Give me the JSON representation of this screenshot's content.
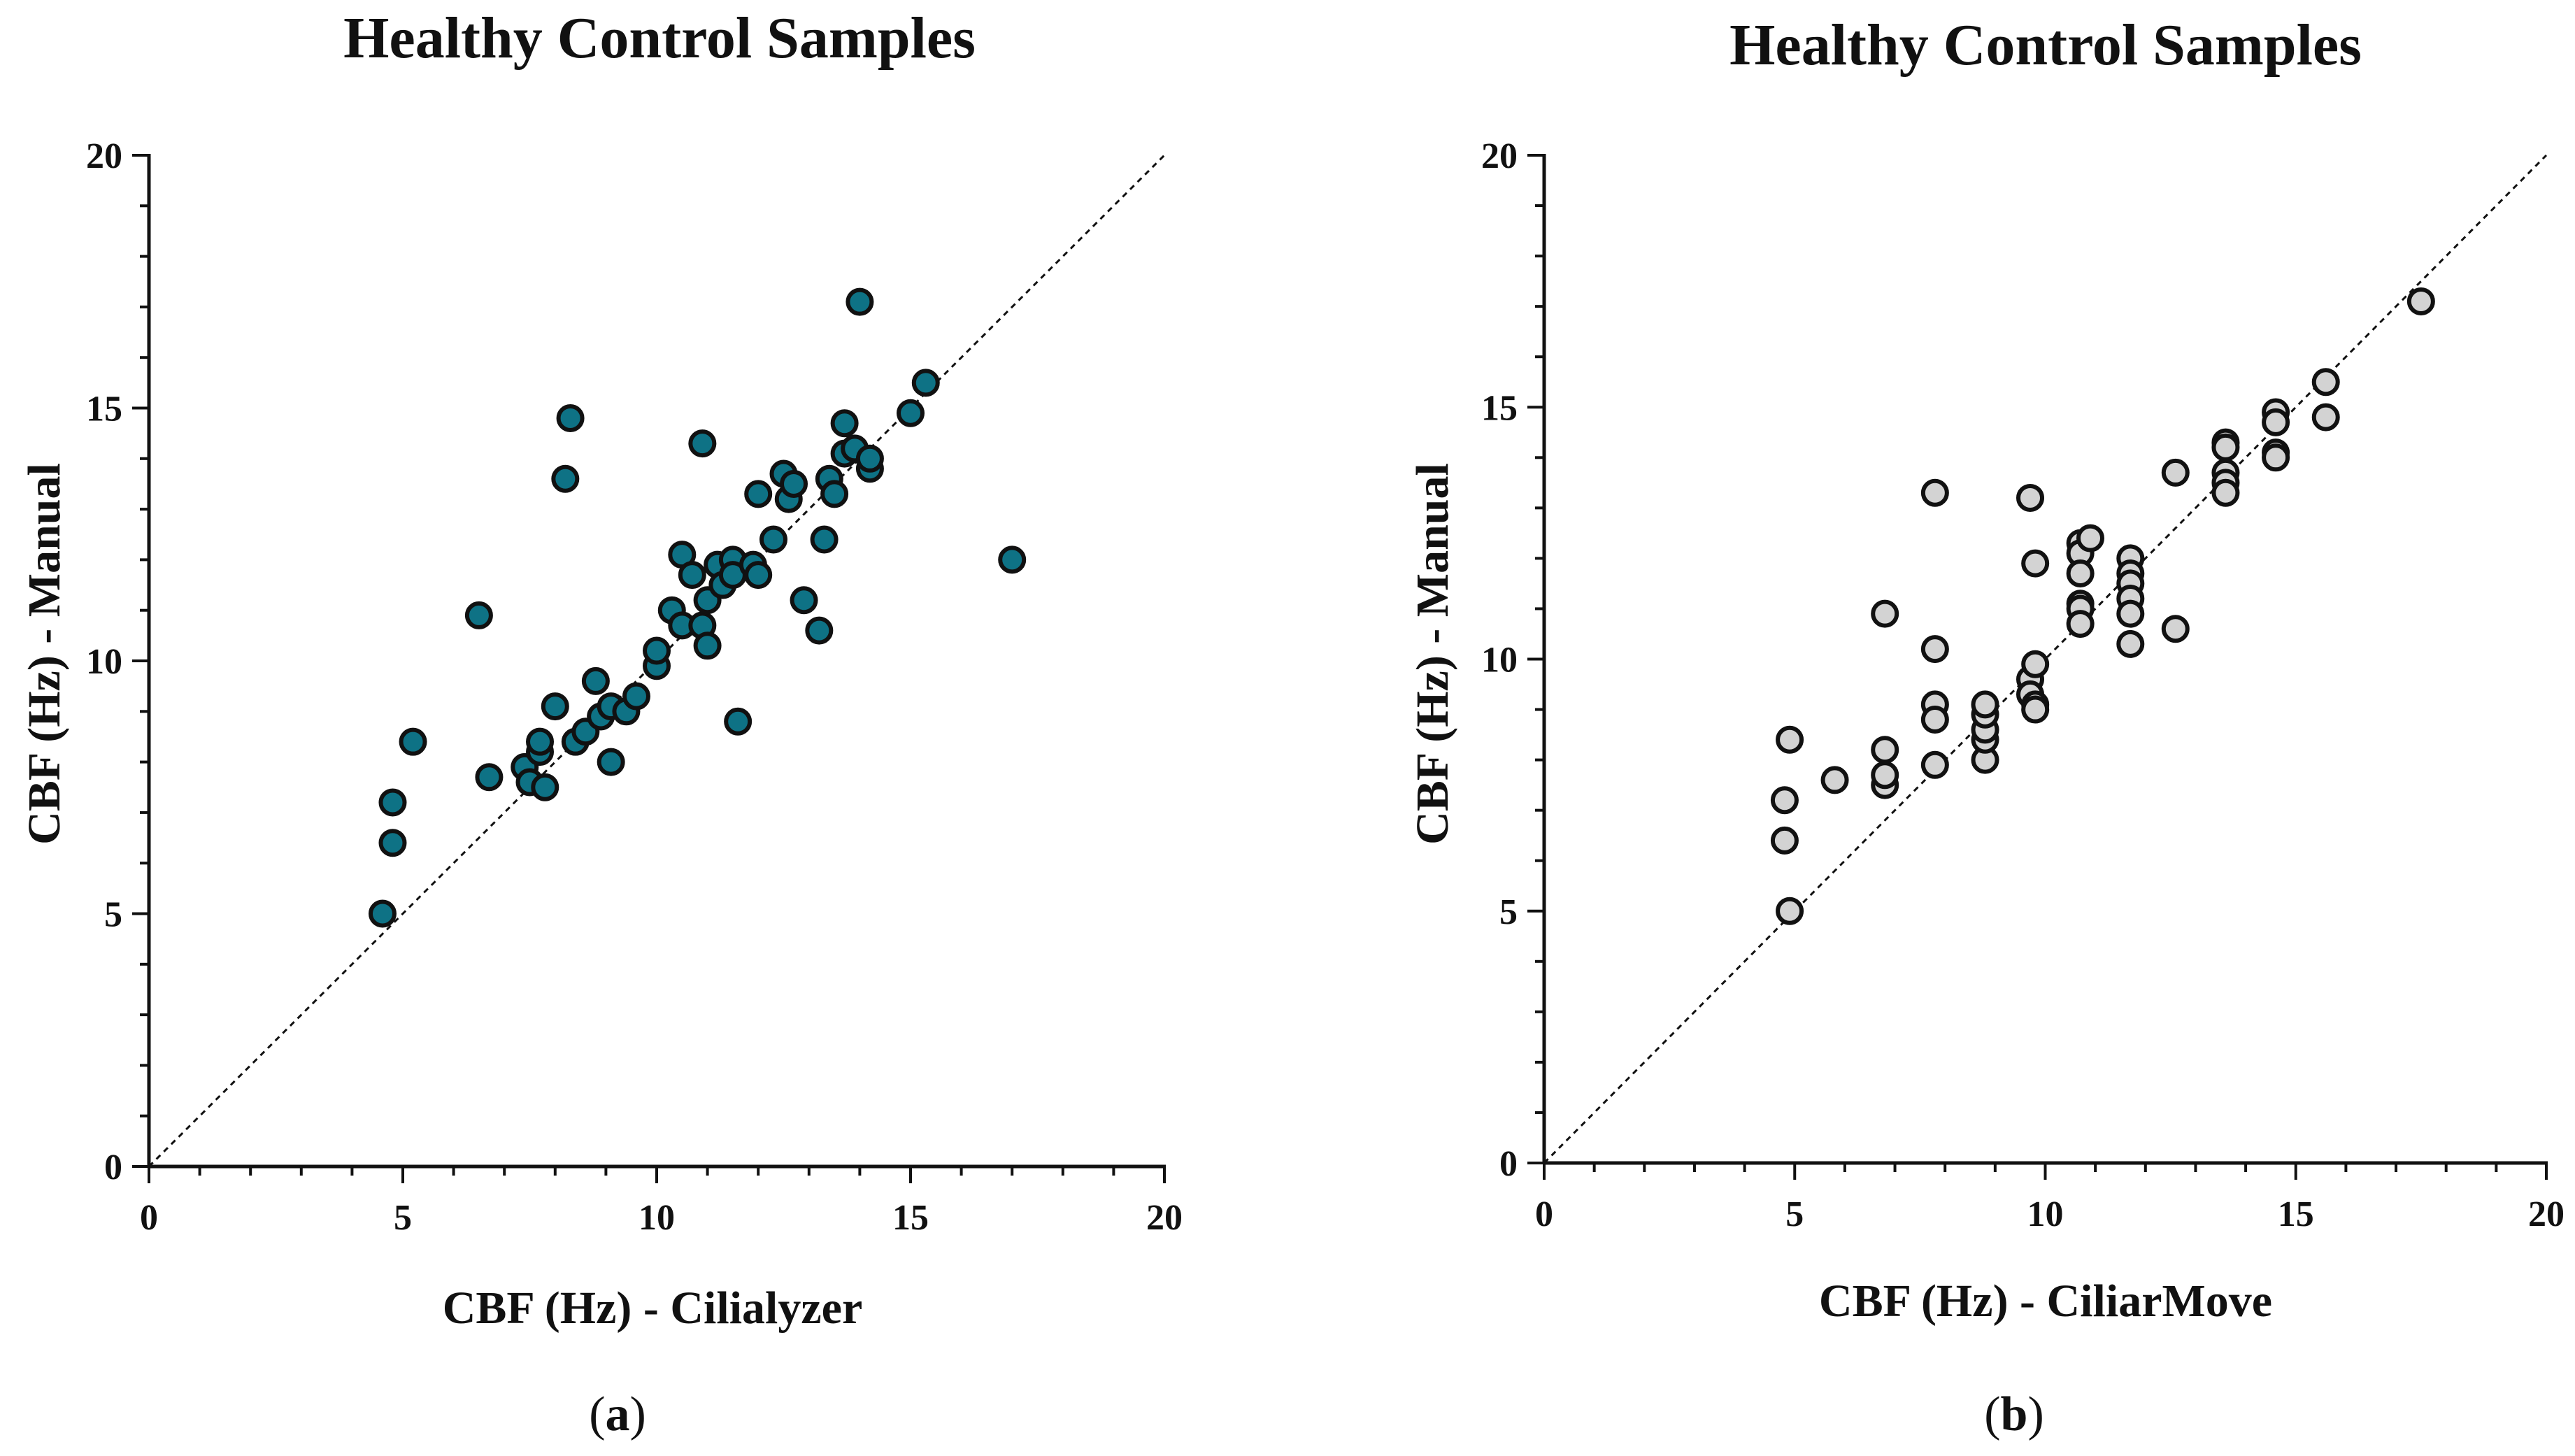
{
  "chart_data": [
    {
      "type": "scatter",
      "panel_label": "a",
      "title": "Healthy Control Samples",
      "xlabel": "CBF (Hz) - Cilialyzer",
      "ylabel": "CBF (Hz) - Manual",
      "xlim": [
        0,
        20
      ],
      "ylim": [
        0,
        20
      ],
      "xticks": [
        "0",
        "5",
        "10",
        "15",
        "20"
      ],
      "yticks": [
        "0",
        "5",
        "10",
        "15",
        "20"
      ],
      "identity_line": true,
      "marker_color": "#0e7285",
      "points": [
        [
          4.6,
          5.0
        ],
        [
          4.8,
          6.4
        ],
        [
          4.8,
          7.2
        ],
        [
          5.2,
          8.4
        ],
        [
          6.5,
          10.9
        ],
        [
          6.7,
          7.7
        ],
        [
          7.4,
          7.9
        ],
        [
          7.5,
          7.6
        ],
        [
          7.7,
          8.2
        ],
        [
          7.7,
          8.4
        ],
        [
          7.8,
          7.5
        ],
        [
          8.0,
          9.1
        ],
        [
          8.2,
          13.6
        ],
        [
          8.3,
          14.8
        ],
        [
          8.4,
          8.4
        ],
        [
          8.6,
          8.6
        ],
        [
          8.8,
          9.6
        ],
        [
          8.9,
          8.9
        ],
        [
          9.1,
          9.1
        ],
        [
          9.1,
          8.0
        ],
        [
          9.4,
          9.0
        ],
        [
          9.6,
          9.3
        ],
        [
          10.0,
          9.9
        ],
        [
          10.0,
          10.2
        ],
        [
          10.3,
          11.0
        ],
        [
          10.5,
          12.1
        ],
        [
          10.5,
          10.7
        ],
        [
          10.7,
          11.7
        ],
        [
          10.9,
          14.3
        ],
        [
          10.9,
          10.7
        ],
        [
          11.0,
          10.3
        ],
        [
          11.0,
          11.2
        ],
        [
          11.2,
          11.9
        ],
        [
          11.3,
          11.5
        ],
        [
          11.5,
          12.0
        ],
        [
          11.5,
          11.7
        ],
        [
          11.6,
          8.8
        ],
        [
          11.9,
          11.9
        ],
        [
          12.0,
          11.7
        ],
        [
          12.0,
          13.3
        ],
        [
          12.3,
          12.4
        ],
        [
          12.5,
          13.7
        ],
        [
          12.6,
          13.2
        ],
        [
          12.7,
          13.5
        ],
        [
          12.9,
          11.2
        ],
        [
          13.2,
          10.6
        ],
        [
          13.3,
          12.4
        ],
        [
          13.4,
          13.6
        ],
        [
          13.5,
          13.3
        ],
        [
          13.7,
          14.7
        ],
        [
          13.7,
          14.1
        ],
        [
          13.9,
          14.2
        ],
        [
          14.0,
          17.1
        ],
        [
          14.2,
          13.8
        ],
        [
          14.2,
          14.0
        ],
        [
          15.0,
          14.9
        ],
        [
          15.3,
          15.5
        ],
        [
          17.0,
          12.0
        ]
      ]
    },
    {
      "type": "scatter",
      "panel_label": "b",
      "title": "Healthy Control Samples",
      "xlabel": "CBF (Hz) - CiliarMove",
      "ylabel": "CBF (Hz) - Manual",
      "xlim": [
        0,
        20
      ],
      "ylim": [
        0,
        20
      ],
      "xticks": [
        "0",
        "5",
        "10",
        "15",
        "20"
      ],
      "yticks": [
        "0",
        "5",
        "10",
        "15",
        "20"
      ],
      "identity_line": true,
      "marker_color": "#d3d3d3",
      "points": [
        [
          4.8,
          6.4
        ],
        [
          4.8,
          7.2
        ],
        [
          4.9,
          5.0
        ],
        [
          4.9,
          8.4
        ],
        [
          5.8,
          7.6
        ],
        [
          6.8,
          10.9
        ],
        [
          6.8,
          7.5
        ],
        [
          6.8,
          7.7
        ],
        [
          6.8,
          8.2
        ],
        [
          7.8,
          13.3
        ],
        [
          7.8,
          10.2
        ],
        [
          7.8,
          9.1
        ],
        [
          7.8,
          8.8
        ],
        [
          7.8,
          7.9
        ],
        [
          8.8,
          8.0
        ],
        [
          8.8,
          8.4
        ],
        [
          8.8,
          8.6
        ],
        [
          8.8,
          8.9
        ],
        [
          8.8,
          9.1
        ],
        [
          9.7,
          13.2
        ],
        [
          9.7,
          9.6
        ],
        [
          9.7,
          9.3
        ],
        [
          9.8,
          11.9
        ],
        [
          9.8,
          9.9
        ],
        [
          9.8,
          9.1
        ],
        [
          9.8,
          9.0
        ],
        [
          10.7,
          12.3
        ],
        [
          10.7,
          12.1
        ],
        [
          10.7,
          11.7
        ],
        [
          10.7,
          11.1
        ],
        [
          10.7,
          11.0
        ],
        [
          10.7,
          10.7
        ],
        [
          10.9,
          12.4
        ],
        [
          11.7,
          12.0
        ],
        [
          11.7,
          11.7
        ],
        [
          11.7,
          11.5
        ],
        [
          11.7,
          11.2
        ],
        [
          11.7,
          10.9
        ],
        [
          11.7,
          10.3
        ],
        [
          12.6,
          13.7
        ],
        [
          12.6,
          10.6
        ],
        [
          13.6,
          14.3
        ],
        [
          13.6,
          14.2
        ],
        [
          13.6,
          13.7
        ],
        [
          13.6,
          13.5
        ],
        [
          13.6,
          13.3
        ],
        [
          14.6,
          14.9
        ],
        [
          14.6,
          14.7
        ],
        [
          14.6,
          14.1
        ],
        [
          14.6,
          14.0
        ],
        [
          15.6,
          15.5
        ],
        [
          15.6,
          14.8
        ],
        [
          17.5,
          17.1
        ]
      ]
    }
  ]
}
